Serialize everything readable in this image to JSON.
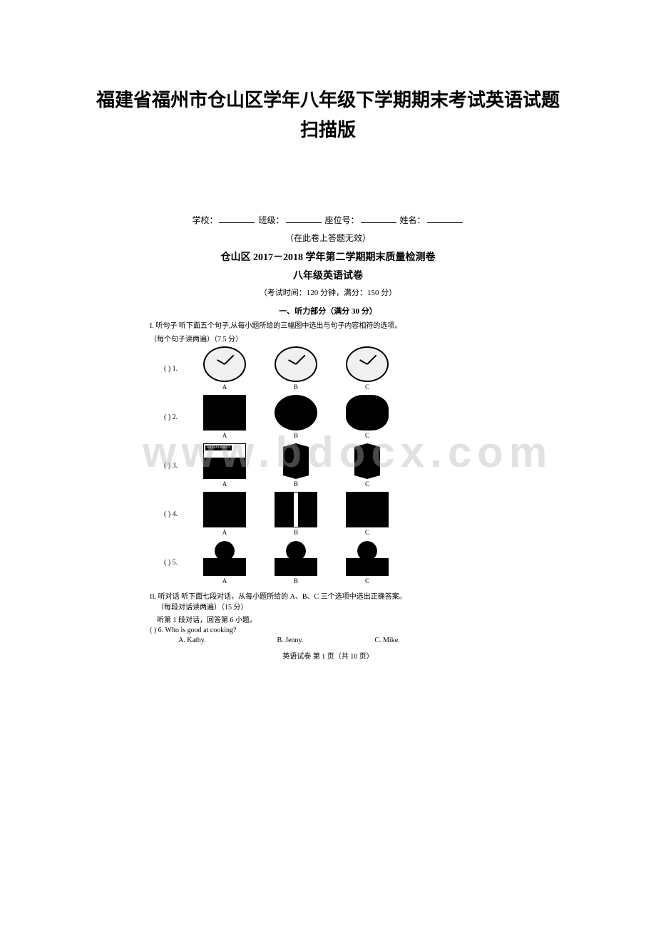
{
  "page_title_line1": "福建省福州市仓山区学年八年级下学期期末考试英语试题",
  "page_title_line2": "扫描版",
  "form": {
    "school_label": "学校：",
    "class_label": "班级：",
    "seat_label": "座位号：",
    "name_label": "姓名："
  },
  "notice": "（在此卷上答题无效）",
  "doc_title": "仓山区 2017－2018 学年第二学期期末质量检测卷",
  "doc_subtitle": "八年级英语试卷",
  "exam_info": "（考试时间：120 分钟，满分：150 分）",
  "section1_header": "一、听力部分（满分 30 分）",
  "section1_instruction": "I. 听句子 听下面五个句子,从每小题所给的三幅图中选出与句子内容相符的选项。",
  "section1_sub": "（每个句子读两遍）（7.5 分）",
  "questions": [
    {
      "num": "(    ) 1.",
      "labels": [
        "A",
        "B",
        "C"
      ]
    },
    {
      "num": "(    ) 2.",
      "labels": [
        "A",
        "B",
        "C"
      ]
    },
    {
      "num": "(    ) 3.",
      "labels": [
        "A",
        "B",
        "C"
      ]
    },
    {
      "num": "(    ) 4.",
      "labels": [
        "A",
        "B",
        "C"
      ]
    },
    {
      "num": "(    ) 5.",
      "labels": [
        "A",
        "B",
        "C"
      ]
    }
  ],
  "section2_instruction": "II. 听对话 听下面七段对话，从每小题所给的 A、B、C 三个选项中选出正确答案。",
  "section2_sub": "（每段对话读两遍）（15 分）",
  "dialog_instruction": "听第 1 段对话，回答第 6 小题。",
  "q6": {
    "num": "(    ) 6.",
    "text": "Who is good at cooking?",
    "options": [
      "A. Kathy.",
      "B. Jenny.",
      "C. Mike."
    ]
  },
  "page_footer": "英语试卷  第 1 页（共 10 页）",
  "watermark": "www.bdocx.com"
}
